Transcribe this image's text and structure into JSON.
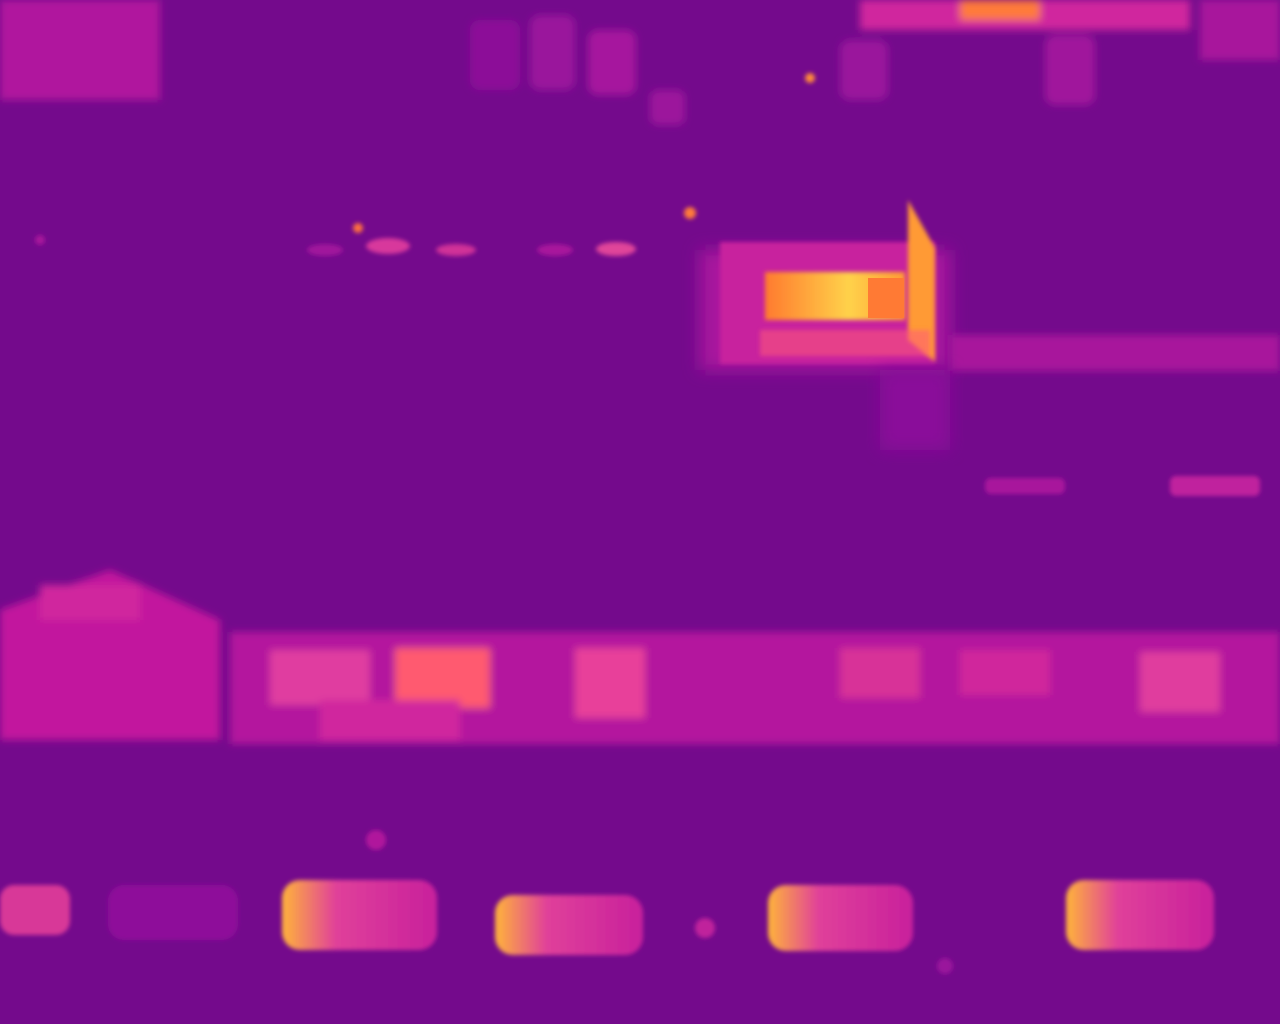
{
  "scene": {
    "type": "aerial-thermal-image",
    "palette": {
      "cold": "#6e0a88",
      "cool": "#8a0e9a",
      "mid": "#c2189e",
      "warm": "#e8409a",
      "hot": "#ff8a3a",
      "hottest": "#ffe04a"
    }
  }
}
